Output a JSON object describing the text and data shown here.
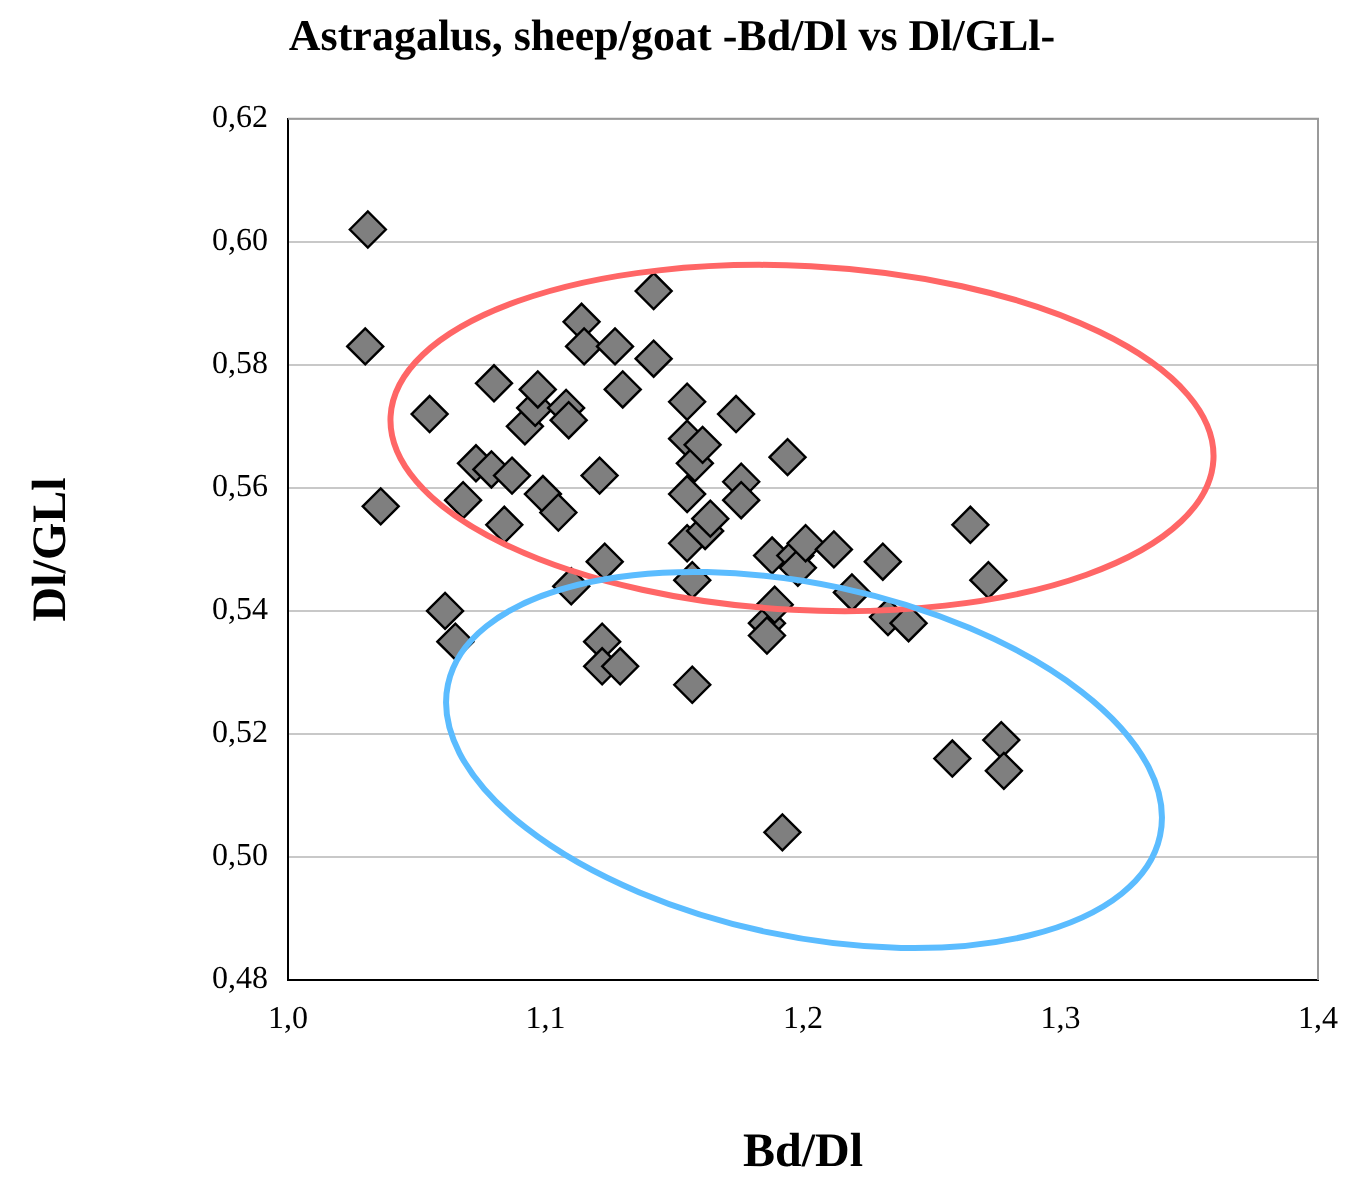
{
  "chart_data": {
    "type": "scatter",
    "title": "Astragalus, sheep/goat -Bd/Dl vs Dl/GLl-",
    "xlabel": "Bd/Dl",
    "ylabel": "Dl/GLl",
    "xlim": [
      1.0,
      1.4
    ],
    "xticks": [
      {
        "value": 1.0,
        "label": "1,0"
      },
      {
        "value": 1.1,
        "label": "1,1"
      },
      {
        "value": 1.2,
        "label": "1,2"
      },
      {
        "value": 1.3,
        "label": "1,3"
      },
      {
        "value": 1.4,
        "label": "1,4"
      }
    ],
    "ylim": [
      0.48,
      0.62
    ],
    "yticks": [
      {
        "value": 0.48,
        "label": "0,48"
      },
      {
        "value": 0.5,
        "label": "0,50"
      },
      {
        "value": 0.52,
        "label": "0,52"
      },
      {
        "value": 0.54,
        "label": "0,54"
      },
      {
        "value": 0.56,
        "label": "0,56"
      },
      {
        "value": 0.58,
        "label": "0,58"
      },
      {
        "value": 0.6,
        "label": "0,60"
      },
      {
        "value": 0.62,
        "label": "0,62"
      }
    ],
    "grid": "y",
    "marker": "diamond",
    "legend": false,
    "series": [
      {
        "color": "#7f7f7f",
        "x": [
          1.031,
          1.03,
          1.036,
          1.055,
          1.061,
          1.065,
          1.068,
          1.073,
          1.08,
          1.079,
          1.084,
          1.087,
          1.092,
          1.096,
          1.097,
          1.099,
          1.105,
          1.108,
          1.109,
          1.11,
          1.114,
          1.115,
          1.121,
          1.123,
          1.122,
          1.122,
          1.127,
          1.13,
          1.129,
          1.142,
          1.142,
          1.155,
          1.155,
          1.155,
          1.155,
          1.158,
          1.157,
          1.157,
          1.161,
          1.162,
          1.164,
          1.174,
          1.176,
          1.176,
          1.186,
          1.188,
          1.189,
          1.186,
          1.194,
          1.197,
          1.198,
          1.201,
          1.212,
          1.219,
          1.231,
          1.233,
          1.241,
          1.192,
          1.258,
          1.265,
          1.272,
          1.277,
          1.278
        ],
        "values": [
          0.602,
          0.583,
          0.557,
          0.572,
          0.54,
          0.535,
          0.558,
          0.564,
          0.577,
          0.563,
          0.554,
          0.562,
          0.57,
          0.573,
          0.576,
          0.559,
          0.556,
          0.573,
          0.571,
          0.544,
          0.587,
          0.583,
          0.562,
          0.548,
          0.535,
          0.531,
          0.583,
          0.576,
          0.531,
          0.581,
          0.592,
          0.574,
          0.568,
          0.559,
          0.551,
          0.564,
          0.545,
          0.528,
          0.567,
          0.553,
          0.555,
          0.572,
          0.561,
          0.558,
          0.538,
          0.549,
          0.541,
          0.536,
          0.565,
          0.549,
          0.547,
          0.551,
          0.55,
          0.543,
          0.548,
          0.539,
          0.538,
          0.504,
          0.516,
          0.554,
          0.545,
          0.519,
          0.514
        ]
      }
    ]
  }
}
